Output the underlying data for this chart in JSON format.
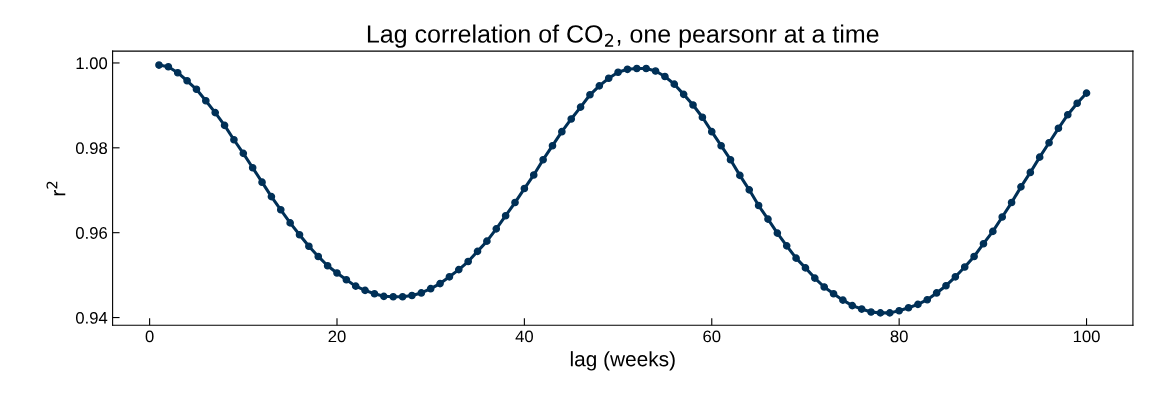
{
  "chart_data": {
    "type": "line",
    "title": "Lag correlation of CO$_{2}$, one pearsonr at a time",
    "xlabel": "lag (weeks)",
    "ylabel": "r$^{2}$",
    "x": [
      1,
      2,
      3,
      4,
      5,
      6,
      7,
      8,
      9,
      10,
      11,
      12,
      13,
      14,
      15,
      16,
      17,
      18,
      19,
      20,
      21,
      22,
      23,
      24,
      25,
      26,
      27,
      28,
      29,
      30,
      31,
      32,
      33,
      34,
      35,
      36,
      37,
      38,
      39,
      40,
      41,
      42,
      43,
      44,
      45,
      46,
      47,
      48,
      49,
      50,
      51,
      52,
      53,
      54,
      55,
      56,
      57,
      58,
      59,
      60,
      61,
      62,
      63,
      64,
      65,
      66,
      67,
      68,
      69,
      70,
      71,
      72,
      73,
      74,
      75,
      76,
      77,
      78,
      79,
      80,
      81,
      82,
      83,
      84,
      85,
      86,
      87,
      88,
      89,
      90,
      91,
      92,
      93,
      94,
      95,
      96,
      97,
      98,
      99,
      100
    ],
    "series": [
      {
        "color": "#003057",
        "values": [
          0.9995,
          0.9991,
          0.9977,
          0.9958,
          0.9938,
          0.9911,
          0.9883,
          0.9853,
          0.9819,
          0.9787,
          0.9753,
          0.9719,
          0.9685,
          0.9654,
          0.9623,
          0.9595,
          0.9568,
          0.9544,
          0.9522,
          0.9505,
          0.9489,
          0.9474,
          0.9464,
          0.9456,
          0.945,
          0.9449,
          0.9449,
          0.9452,
          0.9458,
          0.9468,
          0.948,
          0.9496,
          0.9513,
          0.9532,
          0.9556,
          0.958,
          0.9609,
          0.964,
          0.9671,
          0.9704,
          0.9736,
          0.9772,
          0.9805,
          0.9838,
          0.9868,
          0.9896,
          0.9925,
          0.9946,
          0.9964,
          0.9978,
          0.9985,
          0.9987,
          0.9987,
          0.9981,
          0.9968,
          0.995,
          0.9926,
          0.9901,
          0.9872,
          0.9838,
          0.9805,
          0.9772,
          0.9735,
          0.9701,
          0.9664,
          0.9632,
          0.9599,
          0.9569,
          0.954,
          0.9517,
          0.9493,
          0.9472,
          0.9456,
          0.9441,
          0.9428,
          0.942,
          0.9413,
          0.9411,
          0.9411,
          0.9416,
          0.9423,
          0.9431,
          0.9442,
          0.9458,
          0.9475,
          0.9496,
          0.9519,
          0.9544,
          0.9574,
          0.9603,
          0.9637,
          0.9671,
          0.9708,
          0.9742,
          0.9778,
          0.9812,
          0.9846,
          0.9878,
          0.9905,
          0.9929
        ]
      }
    ],
    "xlim": [
      -3.95,
      104.95
    ],
    "xticks": [
      0,
      20,
      40,
      60,
      80,
      100
    ],
    "ylim": [
      0.9382,
      1.0028
    ],
    "yticks": [
      {
        "value": 0.94,
        "label": "0.94"
      },
      {
        "value": 0.96,
        "label": "0.96"
      },
      {
        "value": 0.98,
        "label": "0.98"
      },
      {
        "value": 1.0,
        "label": "1.00"
      }
    ],
    "marker": "circle",
    "line_style": "solid"
  }
}
